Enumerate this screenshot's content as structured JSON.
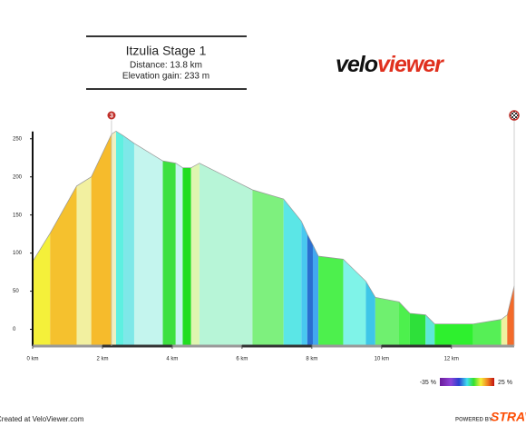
{
  "header": {
    "title": "Itzulia Stage 1",
    "distance": "Distance: 13.8 km",
    "elevation_gain": "Elevation gain: 233 m",
    "logo_left": "velo",
    "logo_right": "viewer"
  },
  "chart_data": {
    "type": "area",
    "x": [
      0,
      0.5,
      1.26,
      1.68,
      2.26,
      2.39,
      2.6,
      2.91,
      3.73,
      4.1,
      4.3,
      4.54,
      4.78,
      6.3,
      7.19,
      7.7,
      7.87,
      8.03,
      8.19,
      8.9,
      9.55,
      9.82,
      10.5,
      10.81,
      11.26,
      11.52,
      12.62,
      13.43,
      13.6,
      13.8
    ],
    "values": [
      89,
      126,
      188,
      200,
      256,
      260,
      254,
      244,
      221,
      218,
      212,
      212,
      218,
      183,
      171,
      142,
      125,
      111,
      96,
      92,
      63,
      42,
      36,
      21,
      19,
      7,
      7,
      13,
      19,
      57
    ],
    "segment_colors": [
      "#f4f03a",
      "#f5c12e",
      "#f2f0a0",
      "#f6bb2c",
      "#f0f0c0",
      "#5ef0e0",
      "#7ee8e8",
      "#c4f5ee",
      "#3de040",
      "#c4f5ee",
      "#20dd20",
      "#dff5b0",
      "#b7f5d7",
      "#7ef07e",
      "#5be6e6",
      "#48c8f0",
      "#2a6fd0",
      "#42a8f0",
      "#4df04d",
      "#7ff3e8",
      "#3ec6e8",
      "#6ff06f",
      "#4df04d",
      "#2ee03a",
      "#5ee8d8",
      "#2ef02e",
      "#56ef56",
      "#f0f0a0",
      "#f36a2a"
    ],
    "xlim": [
      0,
      13.8
    ],
    "ylim": [
      -22,
      270
    ],
    "xticks": [
      {
        "value": 0,
        "label": "0 km"
      },
      {
        "value": 2,
        "label": "2 km"
      },
      {
        "value": 4,
        "label": "4 km"
      },
      {
        "value": 6,
        "label": "6 km"
      },
      {
        "value": 8,
        "label": "8 km"
      },
      {
        "value": 10,
        "label": "10 km"
      },
      {
        "value": 12,
        "label": "12 km"
      }
    ],
    "yticks": [
      0,
      50,
      100,
      150,
      200,
      250
    ],
    "markers": [
      {
        "label": "3",
        "x": 2.26
      }
    ],
    "finish_x": 13.8,
    "legend": {
      "min_label": "-35 %",
      "max_label": "25 %"
    }
  },
  "footer": {
    "left": "Created at VeloViewer.com",
    "powered": "POWERED BY",
    "brand": "STRAVA"
  }
}
